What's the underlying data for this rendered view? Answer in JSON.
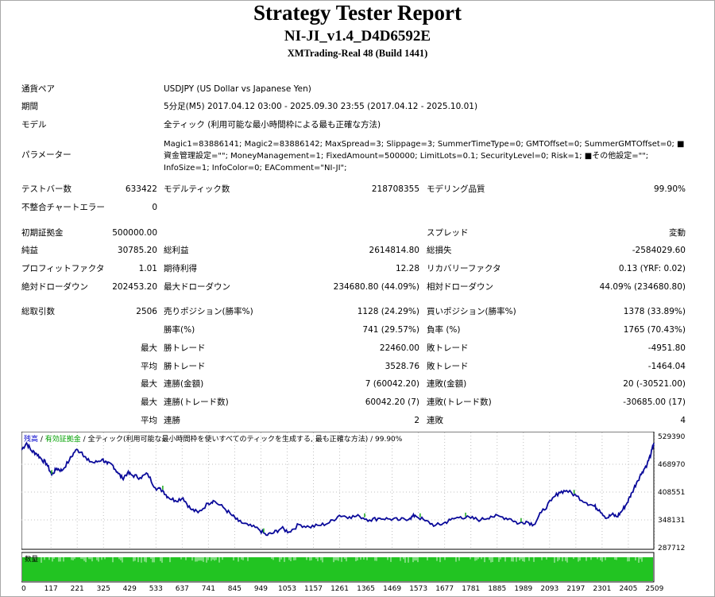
{
  "header": {
    "title": "Strategy Tester Report",
    "subtitle": "NI-JI_v1.4_D4D6592E",
    "server": "XMTrading-Real 48 (Build 1441)"
  },
  "info": {
    "symbol_label": "通貨ペア",
    "symbol_value": "USDJPY (US Dollar vs Japanese Yen)",
    "period_label": "期間",
    "period_value": "5分足(M5) 2017.04.12 03:00 - 2025.09.30 23:55 (2017.04.12 - 2025.10.01)",
    "model_label": "モデル",
    "model_value": "全ティック (利用可能な最小時間枠による最も正確な方法)",
    "params_label": "パラメーター",
    "params_value": "Magic1=83886141; Magic2=83886142; MaxSpread=3; Slippage=3; SummerTimeType=0; GMTOffset=0; SummerGMTOffset=0; ■資金管理設定=\"\"; MoneyManagement=1; FixedAmount=500000; LimitLots=0.1; SecurityLevel=0; Risk=1; ■その他設定=\"\"; InfoSize=1; InfoColor=0; EAComment=\"NI-JI\";"
  },
  "stats": {
    "bars_label": "テストバー数",
    "bars_value": "633422",
    "ticks_label": "モデルティック数",
    "ticks_value": "218708355",
    "quality_label": "モデリング品質",
    "quality_value": "99.90%",
    "mismatch_label": "不整合チャートエラー",
    "mismatch_value": "0",
    "deposit_label": "初期証拠金",
    "deposit_value": "500000.00",
    "spread_label": "スプレッド",
    "spread_value": "変動",
    "net_label": "純益",
    "net_value": "30785.20",
    "gross_profit_label": "総利益",
    "gross_profit_value": "2614814.80",
    "gross_loss_label": "総損失",
    "gross_loss_value": "-2584029.60",
    "pf_label": "プロフィットファクタ",
    "pf_value": "1.01",
    "expected_label": "期待利得",
    "expected_value": "12.28",
    "recovery_label": "リカバリーファクタ",
    "recovery_value": "0.13 (YRF: 0.02)",
    "abs_dd_label": "絶対ドローダウン",
    "abs_dd_value": "202453.20",
    "max_dd_label": "最大ドローダウン",
    "max_dd_value": "234680.80 (44.09%)",
    "rel_dd_label": "相対ドローダウン",
    "rel_dd_value": "44.09% (234680.80)",
    "trades_label": "総取引数",
    "trades_value": "2506",
    "short_label": "売りポジション(勝率%)",
    "short_value": "1128 (24.29%)",
    "long_label": "買いポジション(勝率%)",
    "long_value": "1378 (33.89%)",
    "winrate_label": "勝率(%)",
    "winrate_value": "741 (29.57%)",
    "lossrate_label": "負率 (%)",
    "lossrate_value": "1765 (70.43%)",
    "max_label": "最大",
    "avg_label": "平均",
    "largest_win_label": "勝トレード",
    "largest_win_value": "22460.00",
    "largest_loss_label": "敗トレード",
    "largest_loss_value": "-4951.80",
    "avg_win_label": "勝トレード",
    "avg_win_value": "3528.76",
    "avg_loss_label": "敗トレード",
    "avg_loss_value": "-1464.04",
    "max_consec_win_label": "連勝(金額)",
    "max_consec_win_value": "7 (60042.20)",
    "max_consec_loss_label": "連敗(金額)",
    "max_consec_loss_value": "20 (-30521.00)",
    "max_consec_profit_label": "連勝(トレード数)",
    "max_consec_profit_value": "60042.20 (7)",
    "max_consec_lossamt_label": "連敗(トレード数)",
    "max_consec_lossamt_value": "-30685.00 (17)",
    "avg_consec_win_label": "連勝",
    "avg_consec_win_value": "2",
    "avg_consec_loss_label": "連敗",
    "avg_consec_loss_value": "4"
  },
  "chart_legend": {
    "balance": "残高",
    "sep1": " / ",
    "equity": "有効証拠金",
    "sep2": " / ",
    "model": "全ティック(利用可能な最小時間枠を使いすべてのティックを生成する, 最も正確な方法)",
    "quality": " / 99.90%",
    "volume_label": "数量"
  },
  "colors": {
    "balance_line": "#0a0a9a",
    "equity_mark": "#1aa81a",
    "legend_balance": "#0000cc",
    "legend_equity": "#00a000",
    "volume_fill": "#22c422",
    "grid": "#c0c0c0"
  },
  "chart_data": {
    "type": "line",
    "title": "",
    "xlabel": "",
    "ylabel": "",
    "x_ticks": [
      "0",
      "117",
      "221",
      "325",
      "429",
      "533",
      "637",
      "741",
      "845",
      "949",
      "1053",
      "1157",
      "1261",
      "1365",
      "1469",
      "1573",
      "1677",
      "1781",
      "1885",
      "1989",
      "2093",
      "2197",
      "2301",
      "2405",
      "2509"
    ],
    "y_ticks": [
      "529390",
      "468970",
      "408551",
      "348131",
      "287712"
    ],
    "ylim": [
      287712,
      529390
    ],
    "xlim": [
      0,
      2506
    ],
    "grid": true,
    "series": [
      {
        "name": "残高",
        "x": [
          0,
          20,
          40,
          60,
          80,
          100,
          120,
          140,
          160,
          190,
          215,
          240,
          260,
          290,
          320,
          340,
          360,
          380,
          400,
          420,
          440,
          470,
          500,
          530,
          560,
          580,
          610,
          640,
          670,
          700,
          740,
          760,
          800,
          830,
          860,
          900,
          940,
          970,
          1000,
          1030,
          1060,
          1100,
          1140,
          1180,
          1220,
          1260,
          1300,
          1340,
          1380,
          1420,
          1460,
          1500,
          1540,
          1560,
          1600,
          1640,
          1670,
          1700,
          1740,
          1780,
          1820,
          1860,
          1900,
          1940,
          1970,
          2000,
          2030,
          2060,
          2100,
          2130,
          2160,
          2200,
          2240,
          2270,
          2290,
          2320,
          2340,
          2360,
          2380,
          2400,
          2420,
          2440,
          2460,
          2480,
          2495,
          2506
        ],
        "y": [
          500000,
          515000,
          498000,
          492000,
          480000,
          470000,
          446000,
          460000,
          455000,
          478000,
          500000,
          495000,
          478000,
          472000,
          480000,
          470000,
          468000,
          452000,
          438000,
          450000,
          445000,
          440000,
          448000,
          418000,
          412000,
          398000,
          390000,
          396000,
          372000,
          364000,
          384000,
          390000,
          375000,
          360000,
          345000,
          336000,
          328000,
          315000,
          320000,
          330000,
          322000,
          338000,
          333000,
          336000,
          342000,
          358000,
          355000,
          356000,
          348000,
          352000,
          350000,
          348000,
          352000,
          358000,
          346000,
          336000,
          340000,
          348000,
          355000,
          352000,
          348000,
          356000,
          355000,
          350000,
          340000,
          345000,
          338000,
          364000,
          390000,
          408000,
          412000,
          400000,
          385000,
          378000,
          370000,
          352000,
          360000,
          355000,
          368000,
          385000,
          408000,
          432000,
          452000,
          470000,
          492000,
          515000
        ]
      }
    ]
  }
}
